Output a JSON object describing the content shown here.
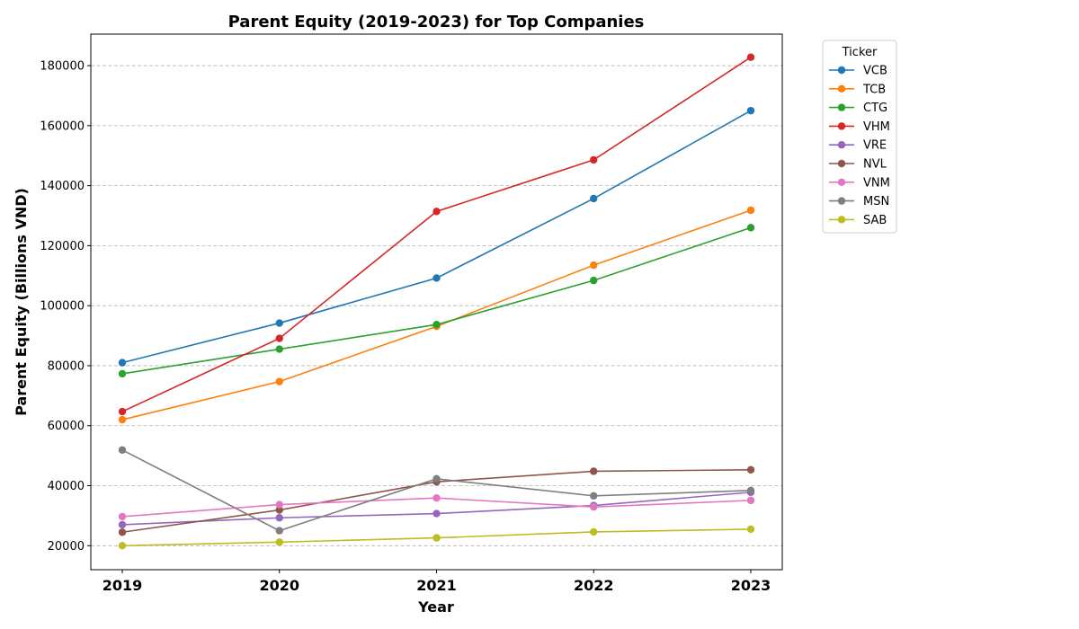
{
  "chart_data": {
    "type": "line",
    "title": "Parent Equity (2019-2023) for Top Companies",
    "xlabel": "Year",
    "ylabel": "Parent Equity (Billions VND)",
    "categories": [
      "2019",
      "2020",
      "2021",
      "2022",
      "2023"
    ],
    "ylim": [
      12000,
      190500
    ],
    "yticks": [
      20000,
      40000,
      60000,
      80000,
      100000,
      120000,
      140000,
      160000,
      180000
    ],
    "grid": "y-dashed",
    "legend": {
      "title": "Ticker",
      "placement": "outside-top-right"
    },
    "series": [
      {
        "name": "VCB",
        "color": "#1f77b4",
        "values": [
          81000,
          94200,
          109200,
          135700,
          165000
        ]
      },
      {
        "name": "TCB",
        "color": "#ff7f0e",
        "values": [
          62000,
          74700,
          93100,
          113500,
          131800
        ]
      },
      {
        "name": "CTG",
        "color": "#2ca02c",
        "values": [
          77300,
          85500,
          93700,
          108400,
          126000
        ]
      },
      {
        "name": "VHM",
        "color": "#d62728",
        "values": [
          64700,
          89100,
          131400,
          148600,
          182800
        ]
      },
      {
        "name": "VRE",
        "color": "#9467bd",
        "values": [
          27000,
          29300,
          30700,
          33400,
          37800
        ]
      },
      {
        "name": "NVL",
        "color": "#8c564b",
        "values": [
          24500,
          31900,
          41300,
          44800,
          45300
        ]
      },
      {
        "name": "VNM",
        "color": "#e377c2",
        "values": [
          29700,
          33700,
          35900,
          32900,
          35100
        ]
      },
      {
        "name": "MSN",
        "color": "#7f7f7f",
        "values": [
          51900,
          25000,
          42300,
          36600,
          38400
        ]
      },
      {
        "name": "SAB",
        "color": "#bcbd22",
        "values": [
          20000,
          21200,
          22600,
          24600,
          25500
        ]
      }
    ]
  }
}
